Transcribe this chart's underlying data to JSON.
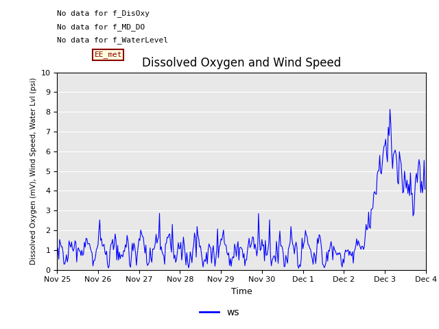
{
  "title": "Dissolved Oxygen and Wind Speed",
  "ylabel": "Dissolved Oxygen (mV), Wind Speed, Water Lvl (psi)",
  "xlabel": "Time",
  "ylim": [
    0.0,
    10.0
  ],
  "yticks": [
    0.0,
    1.0,
    2.0,
    3.0,
    4.0,
    5.0,
    6.0,
    7.0,
    8.0,
    9.0,
    10.0
  ],
  "xtick_labels": [
    "Nov 25",
    "Nov 26",
    "Nov 27",
    "Nov 28",
    "Nov 29",
    "Nov 30",
    "Dec 1",
    "Dec 2",
    "Dec 3",
    "Dec 4"
  ],
  "line_color": "#0000ff",
  "line_width": 0.8,
  "legend_label": "ws",
  "legend_color": "#0000ff",
  "ann0": "No data for f_DisOxy",
  "ann1": "No data for f_MD_DO",
  "ann2": "No data for f_WaterLevel",
  "ann3": "EE_met",
  "ann_fontsize": 8,
  "bg_color": "#e8e8e8",
  "title_fontsize": 12,
  "seed": 42
}
